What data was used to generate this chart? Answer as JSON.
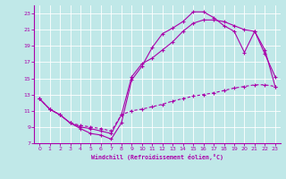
{
  "bg_color": "#c0e8e8",
  "line_color": "#aa00aa",
  "grid_color": "#ffffff",
  "xlim": [
    -0.5,
    23.5
  ],
  "ylim": [
    7,
    24
  ],
  "xticks": [
    0,
    1,
    2,
    3,
    4,
    5,
    6,
    7,
    8,
    9,
    10,
    11,
    12,
    13,
    14,
    15,
    16,
    17,
    18,
    19,
    20,
    21,
    22,
    23
  ],
  "yticks": [
    7,
    9,
    11,
    13,
    15,
    17,
    19,
    21,
    23
  ],
  "xlabel": "Windchill (Refroidissement éolien,°C)",
  "line1_x": [
    0,
    1,
    2,
    3,
    4,
    5,
    6,
    7,
    8,
    9,
    10,
    11,
    12,
    13,
    14,
    15,
    16,
    17,
    18,
    19,
    20,
    21,
    22,
    23
  ],
  "line1_y": [
    12.5,
    11.2,
    10.5,
    9.5,
    8.8,
    8.2,
    8.0,
    7.5,
    9.5,
    14.8,
    16.5,
    18.8,
    20.5,
    21.2,
    22.0,
    23.2,
    23.2,
    22.5,
    21.5,
    20.8,
    18.2,
    20.8,
    18.0,
    15.2
  ],
  "line2_x": [
    0,
    1,
    2,
    3,
    4,
    5,
    6,
    7,
    8,
    9,
    10,
    11,
    12,
    13,
    14,
    15,
    16,
    17,
    18,
    19,
    20,
    21,
    22,
    23
  ],
  "line2_y": [
    12.5,
    11.2,
    10.5,
    9.5,
    9.0,
    8.8,
    8.5,
    8.2,
    10.5,
    15.2,
    16.8,
    17.5,
    18.5,
    19.5,
    20.8,
    21.8,
    22.2,
    22.2,
    22.0,
    21.5,
    21.0,
    20.8,
    18.5,
    14.0
  ],
  "line3_x": [
    0,
    1,
    2,
    3,
    4,
    5,
    6,
    7,
    8,
    9,
    10,
    11,
    12,
    13,
    14,
    15,
    16,
    17,
    18,
    19,
    20,
    21,
    22,
    23
  ],
  "line3_y": [
    12.5,
    11.2,
    10.5,
    9.5,
    9.2,
    9.0,
    8.8,
    8.5,
    10.5,
    11.0,
    11.2,
    11.5,
    11.8,
    12.2,
    12.5,
    12.8,
    13.0,
    13.2,
    13.5,
    13.8,
    14.0,
    14.2,
    14.2,
    14.0
  ]
}
